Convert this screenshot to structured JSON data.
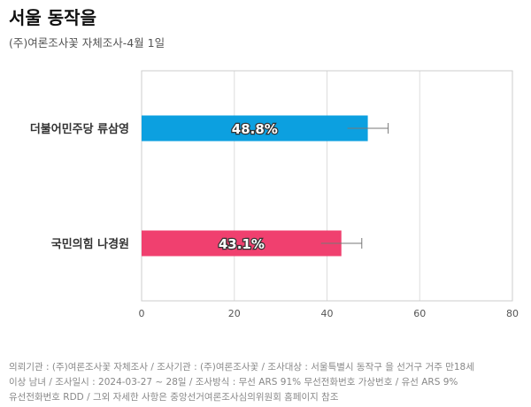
{
  "title": "서울 동작을",
  "subtitle": "(주)여론조사꽃 자체조사-4월 1일",
  "chart_data": {
    "type": "bar",
    "orientation": "horizontal",
    "categories": [
      "더불어민주당 류삼영",
      "국민의힘 나경원"
    ],
    "values": [
      48.8,
      43.1
    ],
    "value_labels": [
      "48.8%",
      "43.1%"
    ],
    "error_margin": 4.4,
    "colors": [
      "#0ca0e0",
      "#f0406f"
    ],
    "xlim": [
      0,
      80
    ],
    "xticks": [
      "0",
      "20",
      "40",
      "60",
      "80"
    ],
    "grid": true
  },
  "footnote": [
    "의뢰기관 : (주)여론조사꽃 자체조사 / 조사기관 : (주)여론조사꽃 / 조사대상 : 서울특별시 동작구 을 선거구 거주 만18세",
    "이상 남녀 / 조사일시 : 2024-03-27 ~ 28일 / 조사방식 : 무선 ARS 91% 무선전화번호 가상번호 / 유선 ARS 9%",
    "유선전화번호 RDD / 그외 자세한 사항은 중앙선거여론조사심의위원회 홈페이지 참조"
  ]
}
